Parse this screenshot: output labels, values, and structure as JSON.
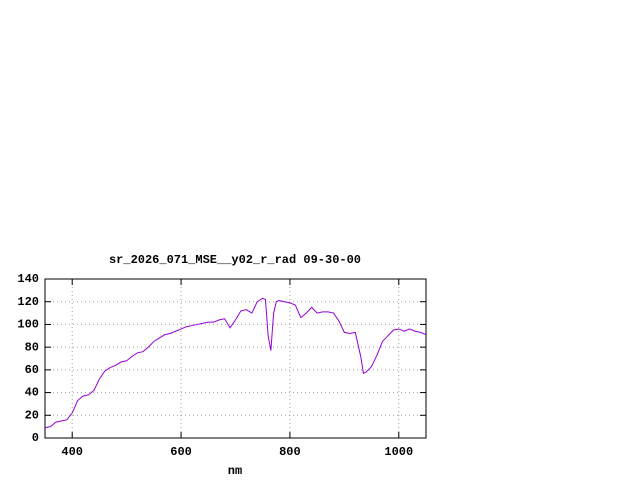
{
  "chart_data": {
    "type": "line",
    "title": "sr_2026_071_MSE__y02_r_rad 09-30-00",
    "x_label": "nm",
    "x": [
      350,
      360,
      370,
      380,
      390,
      400,
      410,
      420,
      430,
      440,
      450,
      460,
      470,
      480,
      490,
      500,
      510,
      520,
      530,
      540,
      550,
      560,
      570,
      580,
      590,
      600,
      610,
      620,
      630,
      640,
      650,
      660,
      670,
      680,
      690,
      700,
      710,
      720,
      730,
      740,
      750,
      755,
      760,
      765,
      770,
      775,
      780,
      790,
      800,
      810,
      820,
      830,
      840,
      850,
      860,
      870,
      880,
      890,
      900,
      910,
      920,
      930,
      935,
      940,
      950,
      960,
      970,
      980,
      990,
      1000,
      1010,
      1020,
      1030,
      1040,
      1050
    ],
    "series": [
      {
        "color": "#9400d3",
        "values": [
          9,
          10,
          14,
          15,
          16,
          22,
          33,
          37,
          38,
          42,
          52,
          59,
          62,
          64,
          67,
          68,
          72,
          75,
          76,
          80,
          85,
          88,
          91,
          92,
          94,
          96,
          98,
          99,
          100,
          101,
          102,
          102,
          104,
          105,
          97,
          104,
          112,
          113,
          110,
          120,
          123,
          122,
          90,
          77,
          110,
          120,
          121,
          120,
          119,
          117,
          106,
          110,
          115,
          110,
          111,
          111,
          110,
          103,
          93,
          92,
          93,
          72,
          57,
          58,
          63,
          73,
          85,
          90,
          95,
          96,
          94,
          96,
          94,
          93,
          91
        ]
      }
    ],
    "xlim": [
      350,
      1050
    ],
    "xticks": [
      400,
      600,
      800,
      1000
    ],
    "ylim": [
      0,
      140
    ],
    "yticks": [
      0,
      20,
      40,
      60,
      80,
      100,
      120,
      140
    ],
    "grid": true
  }
}
